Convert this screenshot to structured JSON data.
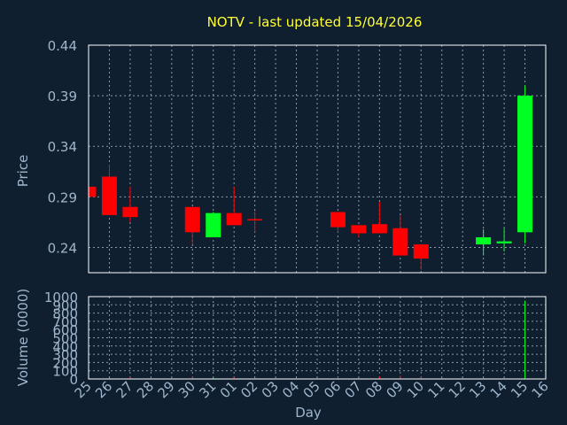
{
  "chart_data": {
    "type": "candlestick",
    "title": "NOTV - last updated 15/04/2026",
    "price_panel": {
      "ylabel": "Price",
      "ylim": [
        0.215,
        0.44
      ],
      "y_ticks": [
        "0.44",
        "0.39",
        "0.34",
        "0.29",
        "0.24"
      ],
      "y_tick_values": [
        0.44,
        0.39,
        0.34,
        0.29,
        0.24
      ]
    },
    "volume_panel": {
      "ylabel": "Volume (0000)",
      "ylim": [
        0,
        1000
      ],
      "y_ticks": [
        "1000",
        "900",
        "800",
        "700",
        "600",
        "500",
        "400",
        "300",
        "200",
        "100",
        "0"
      ],
      "y_tick_values": [
        1000,
        900,
        800,
        700,
        600,
        500,
        400,
        300,
        200,
        100,
        0
      ]
    },
    "xlabel": "Day",
    "x_ticks": [
      "25",
      "26",
      "27",
      "28",
      "29",
      "30",
      "31",
      "01",
      "02",
      "03",
      "04",
      "05",
      "06",
      "07",
      "08",
      "09",
      "10",
      "11",
      "12",
      "13",
      "14",
      "15",
      "16"
    ],
    "candles": [
      {
        "day": "25",
        "open": 0.3,
        "close": 0.29,
        "high": 0.3,
        "low": 0.29,
        "volume": 5
      },
      {
        "day": "26",
        "open": 0.31,
        "close": 0.272,
        "high": 0.322,
        "low": 0.272,
        "volume": 10
      },
      {
        "day": "27",
        "open": 0.28,
        "close": 0.27,
        "high": 0.3,
        "low": 0.265,
        "volume": 20
      },
      {
        "day": "30",
        "open": 0.28,
        "close": 0.255,
        "high": 0.28,
        "low": 0.243,
        "volume": 30
      },
      {
        "day": "31",
        "open": 0.25,
        "close": 0.274,
        "high": 0.275,
        "low": 0.25,
        "volume": 10
      },
      {
        "day": "01",
        "open": 0.274,
        "close": 0.262,
        "high": 0.3,
        "low": 0.262,
        "volume": 20
      },
      {
        "day": "02",
        "open": 0.268,
        "close": 0.267,
        "high": 0.276,
        "low": 0.255,
        "volume": 5
      },
      {
        "day": "06",
        "open": 0.275,
        "close": 0.26,
        "high": 0.275,
        "low": 0.255,
        "volume": 20
      },
      {
        "day": "07",
        "open": 0.262,
        "close": 0.254,
        "high": 0.262,
        "low": 0.25,
        "volume": 10
      },
      {
        "day": "08",
        "open": 0.263,
        "close": 0.254,
        "high": 0.285,
        "low": 0.254,
        "volume": 30
      },
      {
        "day": "09",
        "open": 0.259,
        "close": 0.232,
        "high": 0.272,
        "low": 0.232,
        "volume": 40
      },
      {
        "day": "10",
        "open": 0.243,
        "close": 0.229,
        "high": 0.243,
        "low": 0.218,
        "volume": 25
      },
      {
        "day": "13",
        "open": 0.243,
        "close": 0.25,
        "high": 0.258,
        "low": 0.232,
        "volume": 5
      },
      {
        "day": "14",
        "open": 0.244,
        "close": 0.246,
        "high": 0.259,
        "low": 0.236,
        "volume": 5
      },
      {
        "day": "15",
        "open": 0.255,
        "close": 0.39,
        "high": 0.4,
        "low": 0.244,
        "volume": 950
      }
    ],
    "grid": true,
    "colors": {
      "background": "#0f1f30",
      "title": "#ffff33",
      "axis_text": "#9fb6cc",
      "frame": "#ffffff",
      "grid": "#8a9aa8",
      "up": "#00ff22",
      "down": "#ff0000"
    }
  }
}
